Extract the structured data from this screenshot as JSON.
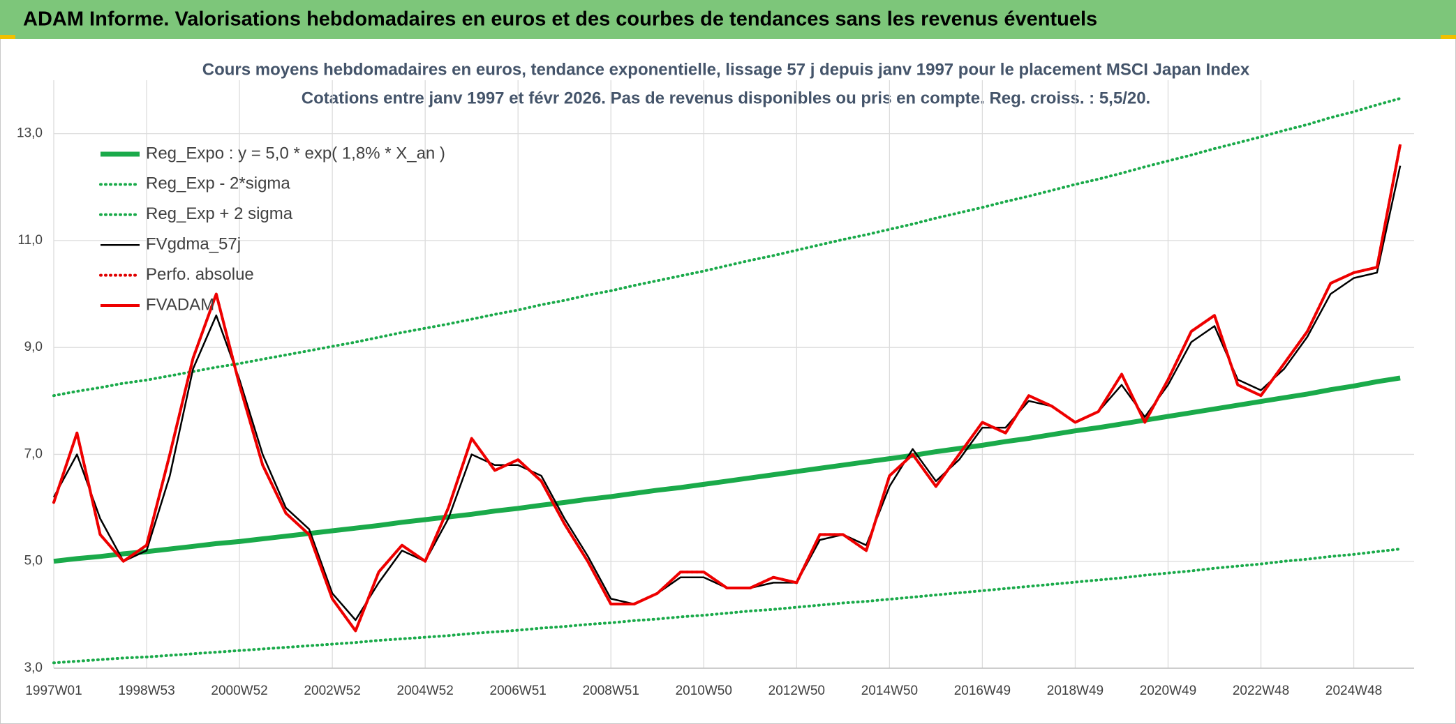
{
  "chart_data": {
    "type": "line",
    "header": "ADAM Informe. Valorisations hebdomadaires en euros et des courbes de tendances sans les revenus éventuels",
    "title": "Cours moyens hebdomadaires en euros, tendance exponentielle, lissage 57 j depuis janv 1997 pour le placement MSCI Japan Index",
    "subtitle": "Cotations entre janv 1997 et févr 2026. Pas de revenus disponibles ou pris en compte. Reg. croiss. : 5,5/20.",
    "categories": [
      "1997W01",
      null,
      null,
      null,
      "1998W53",
      null,
      null,
      null,
      "2000W52",
      null,
      null,
      null,
      "2002W52",
      null,
      null,
      null,
      "2004W52",
      null,
      null,
      null,
      "2006W51",
      null,
      null,
      null,
      "2008W51",
      null,
      null,
      null,
      "2010W50",
      null,
      null,
      null,
      "2012W50",
      null,
      null,
      null,
      "2014W50",
      null,
      null,
      null,
      "2016W49",
      null,
      null,
      null,
      "2018W49",
      null,
      null,
      null,
      "2020W49",
      null,
      null,
      null,
      "2022W48",
      null,
      null,
      null,
      "2024W48",
      null,
      null
    ],
    "ylim": [
      3,
      14
    ],
    "yticks": [
      {
        "value": 3,
        "label": "3,0"
      },
      {
        "value": 5,
        "label": "5,0"
      },
      {
        "value": 7,
        "label": "7,0"
      },
      {
        "value": 9,
        "label": "9,0"
      },
      {
        "value": 11,
        "label": "11,0"
      },
      {
        "value": 13,
        "label": "13,0"
      }
    ],
    "grid": true,
    "legend": "upper left",
    "series": [
      {
        "name": "Reg_Expo : y = 5,0 * exp( 1,8% *  X_an )",
        "color": "#1aaa4a",
        "line_style": "solid",
        "values": [
          5.0,
          5.05,
          5.09,
          5.14,
          5.18,
          5.23,
          5.28,
          5.33,
          5.37,
          5.42,
          5.47,
          5.52,
          5.57,
          5.62,
          5.67,
          5.73,
          5.78,
          5.83,
          5.88,
          5.94,
          5.99,
          6.05,
          6.1,
          6.16,
          6.21,
          6.27,
          6.33,
          6.38,
          6.44,
          6.5,
          6.56,
          6.62,
          6.68,
          6.74,
          6.8,
          6.86,
          6.92,
          6.98,
          7.05,
          7.11,
          7.17,
          7.24,
          7.3,
          7.37,
          7.44,
          7.5,
          7.57,
          7.64,
          7.71,
          7.78,
          7.85,
          7.92,
          7.99,
          8.06,
          8.13,
          8.21,
          8.28,
          8.36,
          8.43
        ]
      },
      {
        "name": "Reg_Exp - 2*sigma",
        "color": "#1aaa4a",
        "line_style": "dotted",
        "values": [
          3.1,
          3.13,
          3.16,
          3.19,
          3.21,
          3.24,
          3.27,
          3.3,
          3.33,
          3.36,
          3.39,
          3.42,
          3.45,
          3.48,
          3.52,
          3.55,
          3.58,
          3.61,
          3.65,
          3.68,
          3.71,
          3.75,
          3.78,
          3.82,
          3.85,
          3.89,
          3.92,
          3.96,
          3.99,
          4.03,
          4.07,
          4.1,
          4.14,
          4.18,
          4.22,
          4.25,
          4.29,
          4.33,
          4.37,
          4.41,
          4.45,
          4.49,
          4.53,
          4.57,
          4.61,
          4.65,
          4.69,
          4.74,
          4.78,
          4.82,
          4.87,
          4.91,
          4.95,
          5.0,
          5.04,
          5.09,
          5.13,
          5.18,
          5.23
        ]
      },
      {
        "name": "Reg_Exp + 2 sigma",
        "color": "#1aaa4a",
        "line_style": "dotted",
        "values": [
          8.1,
          8.18,
          8.25,
          8.33,
          8.39,
          8.47,
          8.55,
          8.63,
          8.7,
          8.78,
          8.86,
          8.94,
          9.02,
          9.1,
          9.19,
          9.28,
          9.36,
          9.44,
          9.53,
          9.62,
          9.7,
          9.8,
          9.88,
          9.98,
          10.06,
          10.16,
          10.25,
          10.34,
          10.43,
          10.53,
          10.63,
          10.72,
          10.82,
          10.92,
          11.02,
          11.11,
          11.21,
          11.31,
          11.42,
          11.52,
          11.62,
          11.73,
          11.83,
          11.94,
          12.05,
          12.15,
          12.26,
          12.38,
          12.49,
          12.6,
          12.72,
          12.83,
          12.94,
          13.06,
          13.17,
          13.3,
          13.41,
          13.54,
          13.66
        ]
      },
      {
        "name": "FVgdma_57j",
        "color": "#000000",
        "line_style": "solid",
        "values": [
          6.2,
          7.0,
          5.8,
          5.0,
          5.2,
          6.6,
          8.6,
          9.6,
          8.4,
          7.0,
          6.0,
          5.6,
          4.4,
          3.9,
          4.6,
          5.2,
          5.0,
          5.8,
          7.0,
          6.8,
          6.8,
          6.6,
          5.8,
          5.1,
          4.3,
          4.2,
          4.4,
          4.7,
          4.7,
          4.5,
          4.5,
          4.6,
          4.6,
          5.4,
          5.5,
          5.3,
          6.4,
          7.1,
          6.5,
          6.9,
          7.5,
          7.5,
          8.0,
          7.9,
          7.6,
          7.8,
          8.3,
          7.7,
          8.3,
          9.1,
          9.4,
          8.4,
          8.2,
          8.6,
          9.2,
          10.0,
          10.3,
          10.4,
          12.4
        ]
      },
      {
        "name": "Perfo. absolue",
        "color": "#e00000",
        "line_style": "dotted",
        "values": [
          6.1,
          7.4,
          5.5,
          5.0,
          5.3,
          7.0,
          8.8,
          10.0,
          8.3,
          6.8,
          5.9,
          5.5,
          4.3,
          3.7,
          4.8,
          5.3,
          5.0,
          6.0,
          7.3,
          6.7,
          6.9,
          6.5,
          5.7,
          5.0,
          4.2,
          4.2,
          4.4,
          4.8,
          4.8,
          4.5,
          4.5,
          4.7,
          4.6,
          5.5,
          5.5,
          5.2,
          6.6,
          7.0,
          6.4,
          7.0,
          7.6,
          7.4,
          8.1,
          7.9,
          7.6,
          7.8,
          8.5,
          7.6,
          8.4,
          9.3,
          9.6,
          8.3,
          8.1,
          8.7,
          9.3,
          10.2,
          10.4,
          10.5,
          12.8
        ]
      },
      {
        "name": "FVADAM",
        "color": "#ee0000",
        "line_style": "solid",
        "values": [
          6.1,
          7.4,
          5.5,
          5.0,
          5.3,
          7.0,
          8.8,
          10.0,
          8.3,
          6.8,
          5.9,
          5.5,
          4.3,
          3.7,
          4.8,
          5.3,
          5.0,
          6.0,
          7.3,
          6.7,
          6.9,
          6.5,
          5.7,
          5.0,
          4.2,
          4.2,
          4.4,
          4.8,
          4.8,
          4.5,
          4.5,
          4.7,
          4.6,
          5.5,
          5.5,
          5.2,
          6.6,
          7.0,
          6.4,
          7.0,
          7.6,
          7.4,
          8.1,
          7.9,
          7.6,
          7.8,
          8.5,
          7.6,
          8.4,
          9.3,
          9.6,
          8.3,
          8.1,
          8.7,
          9.3,
          10.2,
          10.4,
          10.5,
          12.8
        ]
      }
    ]
  }
}
